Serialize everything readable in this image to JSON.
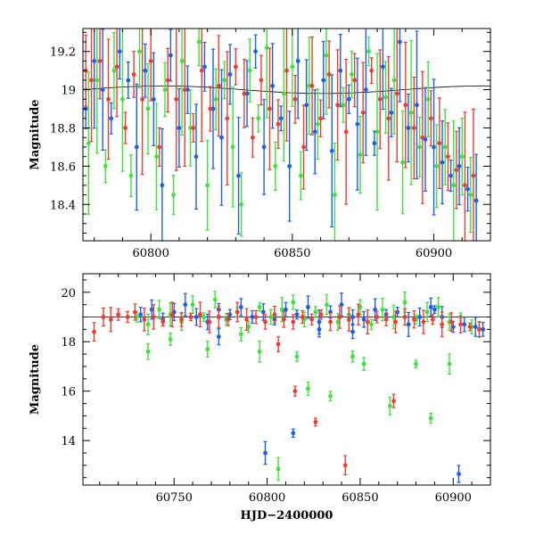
{
  "colors": {
    "green": "#3be43b",
    "blue": "#1a5ff0",
    "red": "#f03c2e",
    "axis": "#000000"
  },
  "chart_data": [
    {
      "type": "scatter",
      "panel": "top",
      "title": "",
      "xlabel": "",
      "ylabel": "Magnitude",
      "xlim": [
        60776,
        60920
      ],
      "ylim": [
        19.32,
        18.21
      ],
      "y_inverted": true,
      "x_ticks": [
        60800,
        60850,
        60900
      ],
      "x_tick_labels": [
        "60800",
        "60850",
        "60900"
      ],
      "y_ticks": [
        18.4,
        18.6,
        18.8,
        19.0,
        19.2
      ],
      "y_tick_labels": [
        "18.4",
        "18.6",
        "18.8",
        "19",
        "19.2"
      ],
      "grid": false,
      "legend": "none",
      "series": [
        {
          "color_key": "green",
          "x": [
            60778,
            60781,
            60784,
            60787,
            60790,
            60793,
            60796,
            60799,
            60802,
            60805,
            60808,
            60811,
            60814,
            60817,
            60820,
            60823,
            60826,
            60829,
            60832,
            60835,
            60838,
            60841,
            60844,
            60847,
            60850,
            60853,
            60856,
            60859,
            60862,
            60865,
            60868,
            60871,
            60874,
            60877,
            60880,
            60883,
            60886,
            60889,
            60892,
            60895,
            60898,
            60901,
            60904,
            60907,
            60910,
            60913
          ],
          "y": [
            18.72,
            19.05,
            18.6,
            19.1,
            18.95,
            18.55,
            19.2,
            18.9,
            18.65,
            19.0,
            18.45,
            19.15,
            18.8,
            19.25,
            18.5,
            18.95,
            19.05,
            18.7,
            18.4,
            19.1,
            18.85,
            19.22,
            18.6,
            18.98,
            19.12,
            18.55,
            19.02,
            18.82,
            19.18,
            18.45,
            18.92,
            19.08,
            18.66,
            19.2,
            18.78,
            18.96,
            19.05,
            18.62,
            18.88,
            18.7,
            18.95,
            18.6,
            18.7,
            18.5,
            18.65,
            18.45
          ]
        },
        {
          "color_key": "blue",
          "x": [
            60777,
            60780,
            60783,
            60786,
            60789,
            60792,
            60795,
            60798,
            60801,
            60804,
            60807,
            60810,
            60813,
            60816,
            60819,
            60822,
            60825,
            60828,
            60831,
            60834,
            60837,
            60840,
            60843,
            60846,
            60849,
            60852,
            60855,
            60858,
            60861,
            60864,
            60867,
            60870,
            60873,
            60876,
            60879,
            60882,
            60885,
            60888,
            60891,
            60894,
            60897,
            60900,
            60903,
            60906,
            60909,
            60912,
            60915
          ],
          "y": [
            18.9,
            19.15,
            19.0,
            18.85,
            19.2,
            19.05,
            18.7,
            19.1,
            18.95,
            18.5,
            19.18,
            18.8,
            19.0,
            18.65,
            19.12,
            18.9,
            18.75,
            19.08,
            18.55,
            18.98,
            19.2,
            18.7,
            19.02,
            18.85,
            18.6,
            19.15,
            18.92,
            18.78,
            19.05,
            18.68,
            19.1,
            18.95,
            18.82,
            19.0,
            18.72,
            19.12,
            18.88,
            19.25,
            18.8,
            18.92,
            18.74,
            18.7,
            18.62,
            18.55,
            18.6,
            18.48,
            18.42
          ]
        },
        {
          "color_key": "red",
          "x": [
            60777,
            60779,
            60782,
            60785,
            60788,
            60791,
            60794,
            60797,
            60800,
            60803,
            60806,
            60809,
            60812,
            60815,
            60818,
            60821,
            60824,
            60827,
            60830,
            60833,
            60836,
            60839,
            60842,
            60845,
            60848,
            60851,
            60854,
            60857,
            60860,
            60863,
            60866,
            60869,
            60872,
            60875,
            60878,
            60881,
            60884,
            60887,
            60890,
            60893,
            60896,
            60899,
            60902,
            60905,
            60908,
            60911,
            60914
          ],
          "y": [
            19.1,
            19.05,
            19.15,
            18.95,
            19.12,
            18.8,
            19.08,
            18.95,
            19.15,
            18.7,
            19.05,
            18.95,
            19.0,
            18.8,
            19.1,
            18.9,
            19.02,
            18.85,
            19.12,
            18.98,
            18.75,
            19.05,
            18.9,
            18.82,
            19.1,
            18.95,
            18.7,
            19.02,
            18.85,
            19.08,
            18.92,
            18.78,
            19.05,
            18.88,
            19.1,
            18.95,
            18.85,
            18.98,
            18.92,
            18.8,
            18.75,
            18.85,
            18.72,
            18.65,
            18.58,
            18.5,
            18.55
          ]
        }
      ]
    },
    {
      "type": "scatter",
      "panel": "bottom",
      "title": "",
      "xlabel": "HJD−2400000",
      "ylabel": "Magnitude",
      "xlim": [
        60701,
        60920
      ],
      "ylim": [
        20.75,
        12.2
      ],
      "y_inverted": true,
      "x_ticks": [
        60750,
        60800,
        60850,
        60900
      ],
      "x_tick_labels": [
        "60750",
        "60800",
        "60850",
        "60900"
      ],
      "y_ticks": [
        14,
        16,
        18,
        20
      ],
      "y_tick_labels": [
        "14",
        "16",
        "18",
        "20"
      ],
      "grid": false,
      "legend": "none",
      "series": [
        {
          "color_key": "green",
          "x": [
            60730,
            60736,
            60742,
            60748,
            60754,
            60760,
            60766,
            60772,
            60778,
            60784,
            60790,
            60796,
            60802,
            60808,
            60814,
            60820,
            60826,
            60832,
            60838,
            60844,
            60850,
            60856,
            60862,
            60868,
            60874,
            60880,
            60886,
            60892,
            60898,
            60904,
            60910,
            60914,
            60736,
            60748,
            60768,
            60786,
            60796,
            60806,
            60816,
            60822,
            60834,
            60846,
            60852,
            60866,
            60880,
            60888,
            60898
          ],
          "y": [
            19.0,
            18.7,
            19.3,
            19.1,
            18.8,
            19.5,
            19.0,
            19.7,
            18.9,
            19.2,
            18.6,
            19.4,
            19.0,
            19.3,
            19.6,
            18.9,
            19.2,
            19.5,
            18.8,
            19.1,
            19.4,
            18.7,
            19.3,
            19.0,
            19.6,
            18.9,
            19.2,
            19.4,
            18.8,
            19.0,
            18.6,
            18.5,
            17.6,
            18.1,
            17.7,
            18.3,
            17.6,
            12.85,
            17.4,
            16.1,
            15.8,
            17.4,
            17.1,
            15.4,
            17.1,
            14.9,
            17.1
          ]
        },
        {
          "color_key": "blue",
          "x": [
            60732,
            60738,
            60744,
            60750,
            60756,
            60762,
            60768,
            60774,
            60780,
            60786,
            60792,
            60798,
            60804,
            60810,
            60816,
            60822,
            60828,
            60834,
            60840,
            60846,
            60852,
            60858,
            60864,
            60870,
            60876,
            60882,
            60888,
            60894,
            60900,
            60906,
            60912,
            60916,
            60799,
            60814,
            60774,
            60828,
            60846,
            60890,
            60903
          ],
          "y": [
            19.1,
            19.3,
            18.9,
            19.2,
            19.5,
            19.0,
            18.8,
            19.3,
            19.1,
            19.4,
            19.0,
            19.2,
            18.9,
            19.3,
            19.1,
            19.4,
            18.8,
            19.2,
            19.5,
            19.0,
            18.9,
            19.3,
            19.1,
            19.2,
            18.7,
            19.0,
            19.4,
            19.0,
            18.6,
            18.7,
            18.6,
            18.5,
            13.5,
            14.3,
            18.2,
            18.5,
            18.4,
            19.3,
            12.65
          ]
        },
        {
          "color_key": "red",
          "x": [
            60707,
            60712,
            60716,
            60720,
            60725,
            60729,
            60734,
            60739,
            60744,
            60749,
            60754,
            60759,
            60764,
            60769,
            60774,
            60779,
            60784,
            60789,
            60794,
            60799,
            60804,
            60809,
            60814,
            60819,
            60824,
            60829,
            60834,
            60839,
            60844,
            60849,
            60854,
            60859,
            60864,
            60869,
            60874,
            60879,
            60884,
            60889,
            60894,
            60899,
            60904,
            60909,
            60914,
            60815,
            60826,
            60842,
            60868,
            60806
          ],
          "y": [
            18.4,
            19.0,
            18.9,
            19.1,
            19.0,
            19.2,
            18.9,
            19.0,
            18.8,
            19.1,
            18.9,
            19.0,
            19.1,
            18.8,
            19.0,
            18.9,
            19.2,
            18.9,
            19.0,
            18.8,
            19.1,
            18.9,
            18.8,
            19.0,
            18.9,
            19.1,
            18.8,
            19.0,
            18.9,
            19.1,
            18.8,
            19.0,
            18.9,
            18.8,
            19.0,
            18.9,
            18.8,
            18.9,
            18.7,
            18.8,
            18.7,
            18.6,
            18.5,
            16.0,
            14.75,
            13.0,
            15.6,
            17.9
          ]
        }
      ]
    }
  ]
}
